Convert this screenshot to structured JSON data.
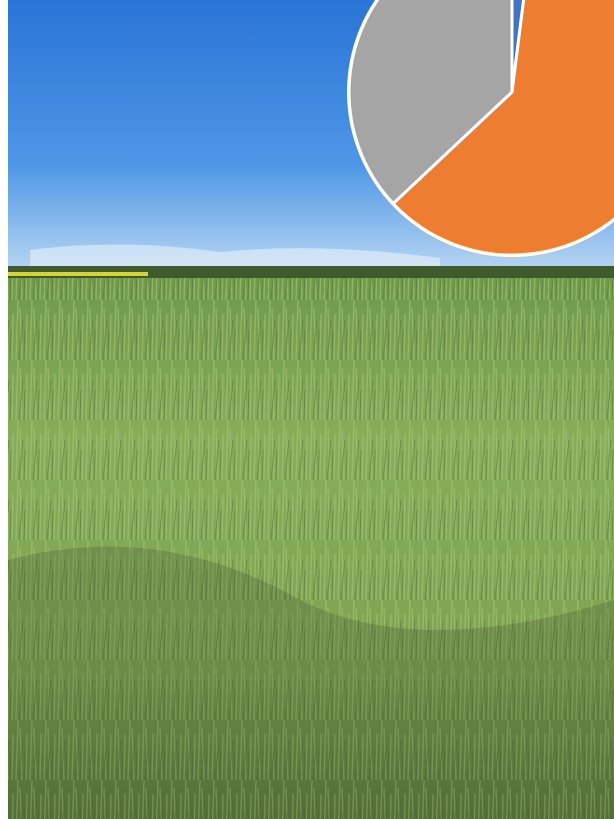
{
  "chart_data": {
    "type": "pie",
    "values": [
      2,
      61,
      37
    ],
    "colors": [
      "#4472c4",
      "#ed7d31",
      "#a5a5a5"
    ]
  }
}
